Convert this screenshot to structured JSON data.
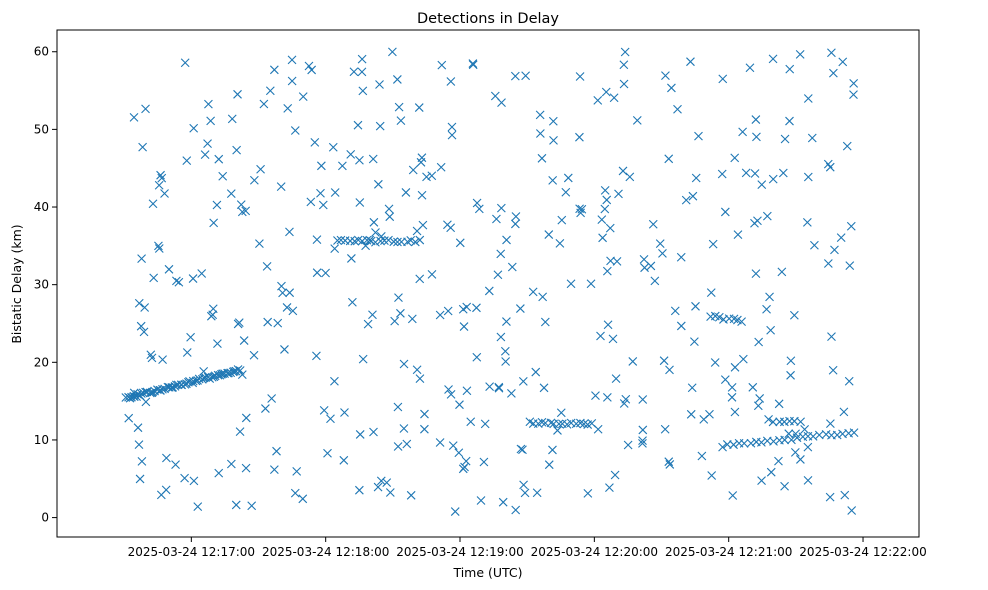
{
  "chart_data": {
    "type": "scatter",
    "title": "Detections in Delay",
    "xlabel": "Time (UTC)",
    "ylabel": "Bistatic Delay (km)",
    "marker": "x",
    "color": "#1f77b4",
    "xlim_seconds": [
      -60,
      325
    ],
    "ylim": [
      -2.5,
      62.8
    ],
    "x_tick_labels": [
      "2025-03-24 12:17:00",
      "2025-03-24 12:18:00",
      "2025-03-24 12:19:00",
      "2025-03-24 12:20:00",
      "2025-03-24 12:21:00",
      "2025-03-24 12:22:00"
    ],
    "x_tick_seconds": [
      0,
      60,
      120,
      180,
      240,
      300
    ],
    "y_ticks": [
      0,
      10,
      20,
      30,
      40,
      50,
      60
    ],
    "trend_segments": [
      {
        "x_start": -29,
        "x_end": 22,
        "y_start": 15.4,
        "y_end": 19.0,
        "count": 60
      },
      {
        "x_start": 65,
        "x_end": 102,
        "y_start": 35.6,
        "y_end": 35.6,
        "count": 20
      },
      {
        "x_start": 151,
        "x_end": 179,
        "y_start": 12.2,
        "y_end": 12.0,
        "count": 16
      },
      {
        "x_start": 232,
        "x_end": 246,
        "y_start": 25.9,
        "y_end": 25.3,
        "count": 8
      },
      {
        "x_start": 237,
        "x_end": 296,
        "y_start": 9.2,
        "y_end": 11.0,
        "count": 24
      },
      {
        "x_start": 260,
        "x_end": 272,
        "y_start": 12.4,
        "y_end": 12.4,
        "count": 6
      }
    ],
    "scattered_points": {
      "count": 430,
      "x_range": [
        -29,
        297
      ],
      "y_range": [
        0.5,
        60
      ]
    }
  }
}
